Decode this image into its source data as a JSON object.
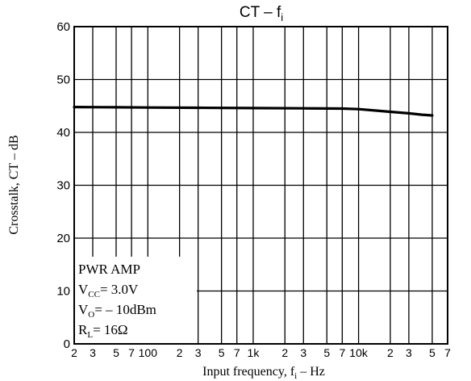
{
  "chart_data": {
    "type": "line",
    "title": "CT – f",
    "title_sub": "i",
    "xlabel": "Input frequency, f",
    "xlabel_sub": "i",
    "xlabel_unit": " – Hz",
    "ylabel": "Crosstalk, CT – dB",
    "x_scale": "log",
    "xlim": [
      20,
      70000
    ],
    "ylim": [
      0,
      60
    ],
    "yticks": [
      0,
      10,
      20,
      30,
      40,
      50,
      60
    ],
    "xticks": [
      {
        "value": 20,
        "label": "2"
      },
      {
        "value": 30,
        "label": "3"
      },
      {
        "value": 50,
        "label": "5"
      },
      {
        "value": 70,
        "label": "7"
      },
      {
        "value": 100,
        "label": "100"
      },
      {
        "value": 200,
        "label": "2"
      },
      {
        "value": 300,
        "label": "3"
      },
      {
        "value": 500,
        "label": "5"
      },
      {
        "value": 700,
        "label": "7"
      },
      {
        "value": 1000,
        "label": "1k"
      },
      {
        "value": 2000,
        "label": "2"
      },
      {
        "value": 3000,
        "label": "3"
      },
      {
        "value": 5000,
        "label": "5"
      },
      {
        "value": 7000,
        "label": "7"
      },
      {
        "value": 10000,
        "label": "10k"
      },
      {
        "value": 20000,
        "label": "2"
      },
      {
        "value": 30000,
        "label": "3"
      },
      {
        "value": 50000,
        "label": "5"
      },
      {
        "value": 70000,
        "label": "7"
      }
    ],
    "grid": true,
    "series": [
      {
        "points": [
          [
            20,
            44.8
          ],
          [
            50,
            44.75
          ],
          [
            100,
            44.7
          ],
          [
            300,
            44.65
          ],
          [
            1000,
            44.6
          ],
          [
            3000,
            44.55
          ],
          [
            7000,
            44.5
          ],
          [
            10000,
            44.4
          ],
          [
            15000,
            44.1
          ],
          [
            20000,
            43.9
          ],
          [
            30000,
            43.6
          ],
          [
            40000,
            43.35
          ],
          [
            50000,
            43.2
          ]
        ]
      }
    ],
    "conditions": {
      "line1": "PWR AMP",
      "line2": "V",
      "line2_sub": "CC",
      "line2_value": "= 3.0V",
      "line3": "V",
      "line3_sub": "O",
      "line3_value": "= – 10dBm",
      "line4": "R",
      "line4_sub": "L",
      "line4_value": "= 16Ω"
    }
  }
}
